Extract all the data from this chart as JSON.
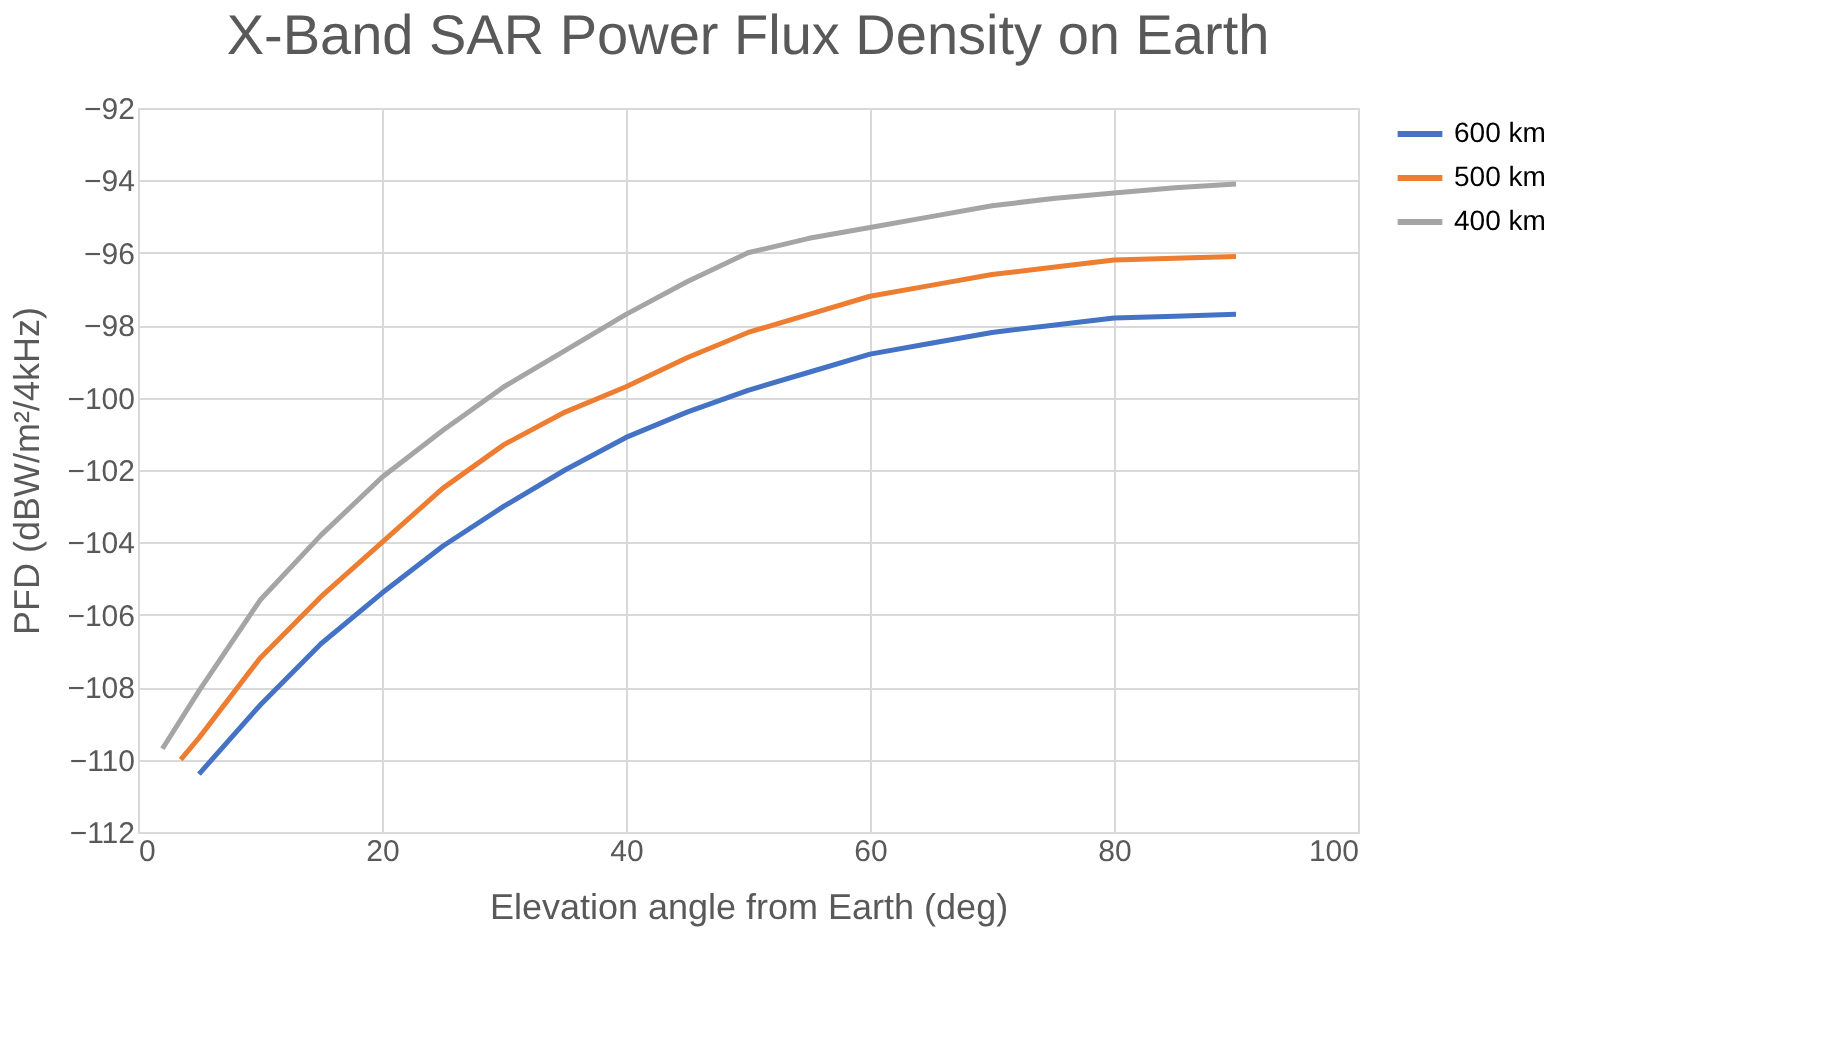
{
  "chart_data": {
    "type": "line",
    "title": "X-Band SAR Power Flux Density on Earth",
    "xlabel": "Elevation angle from Earth (deg)",
    "ylabel": "PFD (dBW/m²/4kHz)",
    "xlim": [
      0,
      100
    ],
    "xticks": [
      0,
      20,
      40,
      60,
      80,
      100
    ],
    "ylim": [
      -112,
      -92
    ],
    "yticks": [
      -112,
      -110,
      -108,
      -106,
      -104,
      -102,
      -100,
      -98,
      -96,
      -94,
      -92
    ],
    "grid": true,
    "legend": "right",
    "line_style": "solid",
    "marker": "none",
    "series": [
      {
        "name": "600 km",
        "color": "#4472c4",
        "x": [
          5,
          10,
          15,
          20,
          25,
          30,
          35,
          40,
          45,
          50,
          55,
          60,
          65,
          70,
          75,
          80,
          85,
          90
        ],
        "values": [
          -110.4,
          -108.5,
          -106.8,
          -105.4,
          -104.1,
          -103.0,
          -102.0,
          -101.1,
          -100.4,
          -99.8,
          -99.3,
          -98.8,
          -98.5,
          -98.2,
          -98.0,
          -97.8,
          -97.75,
          -97.7
        ]
      },
      {
        "name": "500 km",
        "color": "#ed7d31",
        "x": [
          3.5,
          5,
          10,
          15,
          20,
          25,
          30,
          35,
          40,
          45,
          50,
          55,
          60,
          65,
          70,
          75,
          80,
          85,
          90
        ],
        "values": [
          -110.0,
          -109.4,
          -107.2,
          -105.5,
          -104.0,
          -102.5,
          -101.3,
          -100.4,
          -99.7,
          -98.9,
          -98.2,
          -97.7,
          -97.2,
          -96.9,
          -96.6,
          -96.4,
          -96.2,
          -96.15,
          -96.1
        ]
      },
      {
        "name": "400 km",
        "color": "#a5a5a5",
        "x": [
          2,
          5,
          10,
          15,
          20,
          25,
          30,
          35,
          40,
          45,
          50,
          55,
          60,
          65,
          70,
          75,
          80,
          85,
          90
        ],
        "values": [
          -109.7,
          -108.1,
          -105.6,
          -103.8,
          -102.2,
          -100.9,
          -99.7,
          -98.7,
          -97.7,
          -96.8,
          -96.0,
          -95.6,
          -95.3,
          -95.0,
          -94.7,
          -94.5,
          -94.35,
          -94.2,
          -94.1
        ]
      }
    ]
  }
}
